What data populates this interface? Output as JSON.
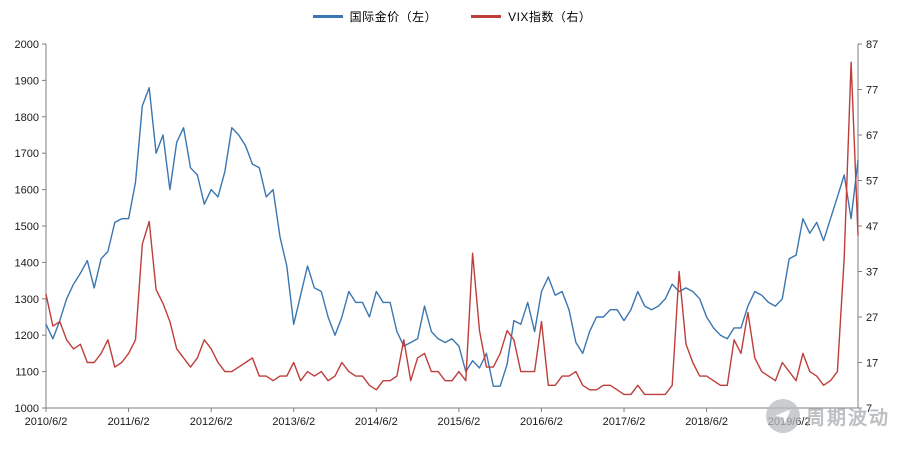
{
  "legend": [
    {
      "label": "国际金价（左）",
      "color": "#3b76b0"
    },
    {
      "label": "VIX指数（右）",
      "color": "#be3e3b"
    }
  ],
  "watermark": {
    "text": "周期波动",
    "icon": "paper-plane-icon"
  },
  "chart_data": {
    "type": "line",
    "title": "",
    "xlabel": "",
    "ylabel_left": "",
    "ylabel_right": "",
    "grid": false,
    "legend_position": "top-center",
    "left_axis": {
      "min": 1000,
      "max": 2000,
      "step": 100
    },
    "right_axis": {
      "min": 7,
      "max": 87,
      "step": 10
    },
    "x_tick_labels": [
      "2010/6/2",
      "2011/6/2",
      "2012/6/2",
      "2013/6/2",
      "2014/6/2",
      "2015/6/2",
      "2016/6/2",
      "2017/6/2",
      "2018/6/2",
      "2019/6/2"
    ],
    "x_tick_indices": [
      0,
      12,
      24,
      36,
      48,
      60,
      72,
      84,
      96,
      108
    ],
    "x": [
      "2010/6",
      "2010/7",
      "2010/8",
      "2010/9",
      "2010/10",
      "2010/11",
      "2010/12",
      "2011/1",
      "2011/2",
      "2011/3",
      "2011/4",
      "2011/5",
      "2011/6",
      "2011/7",
      "2011/8",
      "2011/9",
      "2011/10",
      "2011/11",
      "2011/12",
      "2012/1",
      "2012/2",
      "2012/3",
      "2012/4",
      "2012/5",
      "2012/6",
      "2012/7",
      "2012/8",
      "2012/9",
      "2012/10",
      "2012/11",
      "2012/12",
      "2013/1",
      "2013/2",
      "2013/3",
      "2013/4",
      "2013/5",
      "2013/6",
      "2013/7",
      "2013/8",
      "2013/9",
      "2013/10",
      "2013/11",
      "2013/12",
      "2014/1",
      "2014/2",
      "2014/3",
      "2014/4",
      "2014/5",
      "2014/6",
      "2014/7",
      "2014/8",
      "2014/9",
      "2014/10",
      "2014/11",
      "2014/12",
      "2015/1",
      "2015/2",
      "2015/3",
      "2015/4",
      "2015/5",
      "2015/6",
      "2015/7",
      "2015/8",
      "2015/9",
      "2015/10",
      "2015/11",
      "2015/12",
      "2016/1",
      "2016/2",
      "2016/3",
      "2016/4",
      "2016/5",
      "2016/6",
      "2016/7",
      "2016/8",
      "2016/9",
      "2016/10",
      "2016/11",
      "2016/12",
      "2017/1",
      "2017/2",
      "2017/3",
      "2017/4",
      "2017/5",
      "2017/6",
      "2017/7",
      "2017/8",
      "2017/9",
      "2017/10",
      "2017/11",
      "2017/12",
      "2018/1",
      "2018/2",
      "2018/3",
      "2018/4",
      "2018/5",
      "2018/6",
      "2018/7",
      "2018/8",
      "2018/9",
      "2018/10",
      "2018/11",
      "2018/12",
      "2019/1",
      "2019/2",
      "2019/3",
      "2019/4",
      "2019/5",
      "2019/6",
      "2019/7",
      "2019/8",
      "2019/9",
      "2019/10",
      "2019/11",
      "2019/12",
      "2020/1",
      "2020/2",
      "2020/3",
      "2020/4"
    ],
    "series": [
      {
        "name": "国际金价（左）",
        "axis": "left",
        "color": "#3b76b0",
        "values": [
          1230,
          1190,
          1240,
          1300,
          1340,
          1370,
          1405,
          1330,
          1410,
          1430,
          1510,
          1520,
          1520,
          1620,
          1830,
          1880,
          1700,
          1750,
          1600,
          1730,
          1770,
          1660,
          1640,
          1560,
          1600,
          1580,
          1650,
          1770,
          1750,
          1720,
          1670,
          1660,
          1580,
          1600,
          1470,
          1390,
          1230,
          1310,
          1390,
          1330,
          1320,
          1250,
          1200,
          1250,
          1320,
          1290,
          1290,
          1250,
          1320,
          1290,
          1290,
          1210,
          1170,
          1180,
          1190,
          1280,
          1210,
          1190,
          1180,
          1190,
          1170,
          1100,
          1130,
          1110,
          1150,
          1060,
          1060,
          1120,
          1240,
          1230,
          1290,
          1210,
          1320,
          1360,
          1310,
          1320,
          1270,
          1180,
          1150,
          1210,
          1250,
          1250,
          1270,
          1270,
          1240,
          1270,
          1320,
          1280,
          1270,
          1280,
          1300,
          1340,
          1320,
          1330,
          1320,
          1300,
          1250,
          1220,
          1200,
          1190,
          1220,
          1220,
          1280,
          1320,
          1310,
          1290,
          1280,
          1300,
          1410,
          1420,
          1520,
          1480,
          1510,
          1460,
          1520,
          1580,
          1640,
          1520,
          1680
        ]
      },
      {
        "name": "VIX指数（右）",
        "axis": "right",
        "color": "#be3e3b",
        "values": [
          32,
          25,
          26,
          22,
          20,
          21,
          17,
          17,
          19,
          22,
          16,
          17,
          19,
          22,
          43,
          48,
          33,
          30,
          26,
          20,
          18,
          16,
          18,
          22,
          20,
          17,
          15,
          15,
          16,
          17,
          18,
          14,
          14,
          13,
          14,
          14,
          17,
          13,
          15,
          14,
          15,
          13,
          14,
          17,
          15,
          14,
          14,
          12,
          11,
          13,
          13,
          14,
          22,
          13,
          18,
          19,
          15,
          15,
          13,
          13,
          15,
          13,
          41,
          24,
          16,
          16,
          19,
          24,
          22,
          15,
          15,
          15,
          26,
          12,
          12,
          14,
          14,
          15,
          12,
          11,
          11,
          12,
          12,
          11,
          10,
          10,
          12,
          10,
          10,
          10,
          10,
          12,
          37,
          21,
          17,
          14,
          14,
          13,
          12,
          12,
          22,
          19,
          28,
          18,
          15,
          14,
          13,
          17,
          15,
          13,
          19,
          15,
          14,
          12,
          13,
          15,
          40,
          83,
          45
        ]
      }
    ]
  }
}
